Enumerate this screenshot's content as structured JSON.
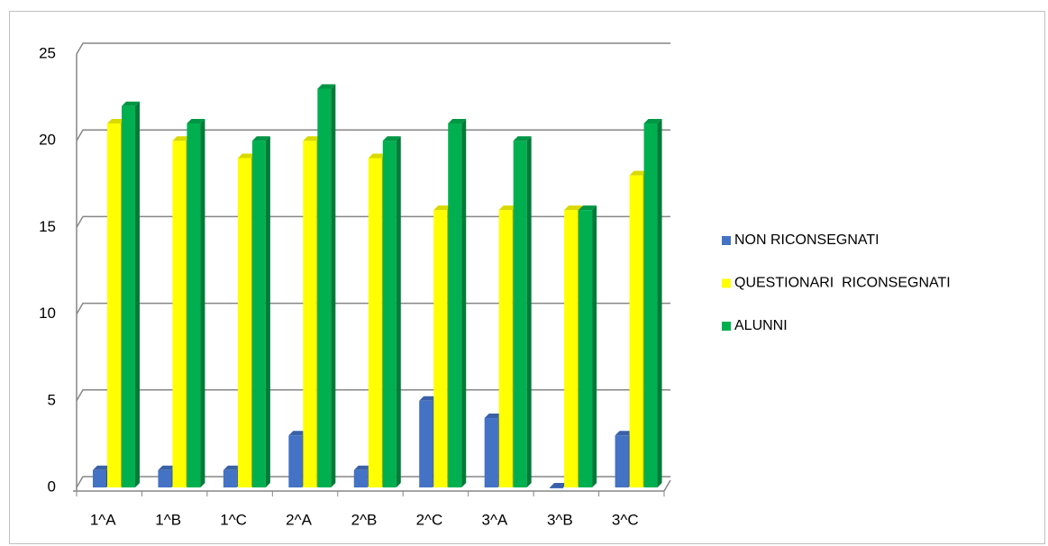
{
  "chart_data": {
    "type": "bar",
    "categories": [
      "1^A",
      "1^B",
      "1^C",
      "2^A",
      "2^B",
      "2^C",
      "3^A",
      "3^B",
      "3^C"
    ],
    "series": [
      {
        "name": "NON RICONSEGNATI",
        "color": "#4472c4",
        "values": [
          1,
          1,
          1,
          3,
          1,
          5,
          4,
          0,
          3
        ]
      },
      {
        "name": "QUESTIONARI  RICONSEGNATI",
        "color": "#ffff00",
        "values": [
          21,
          20,
          19,
          20,
          19,
          16,
          16,
          16,
          18
        ]
      },
      {
        "name": "ALUNNI",
        "color": "#00b050",
        "values": [
          22,
          21,
          20,
          23,
          20,
          21,
          20,
          16,
          21
        ]
      }
    ],
    "ylim": [
      0,
      25
    ],
    "yticks": [
      0,
      5,
      10,
      15,
      20,
      25
    ],
    "grid": true,
    "legend": "right"
  }
}
